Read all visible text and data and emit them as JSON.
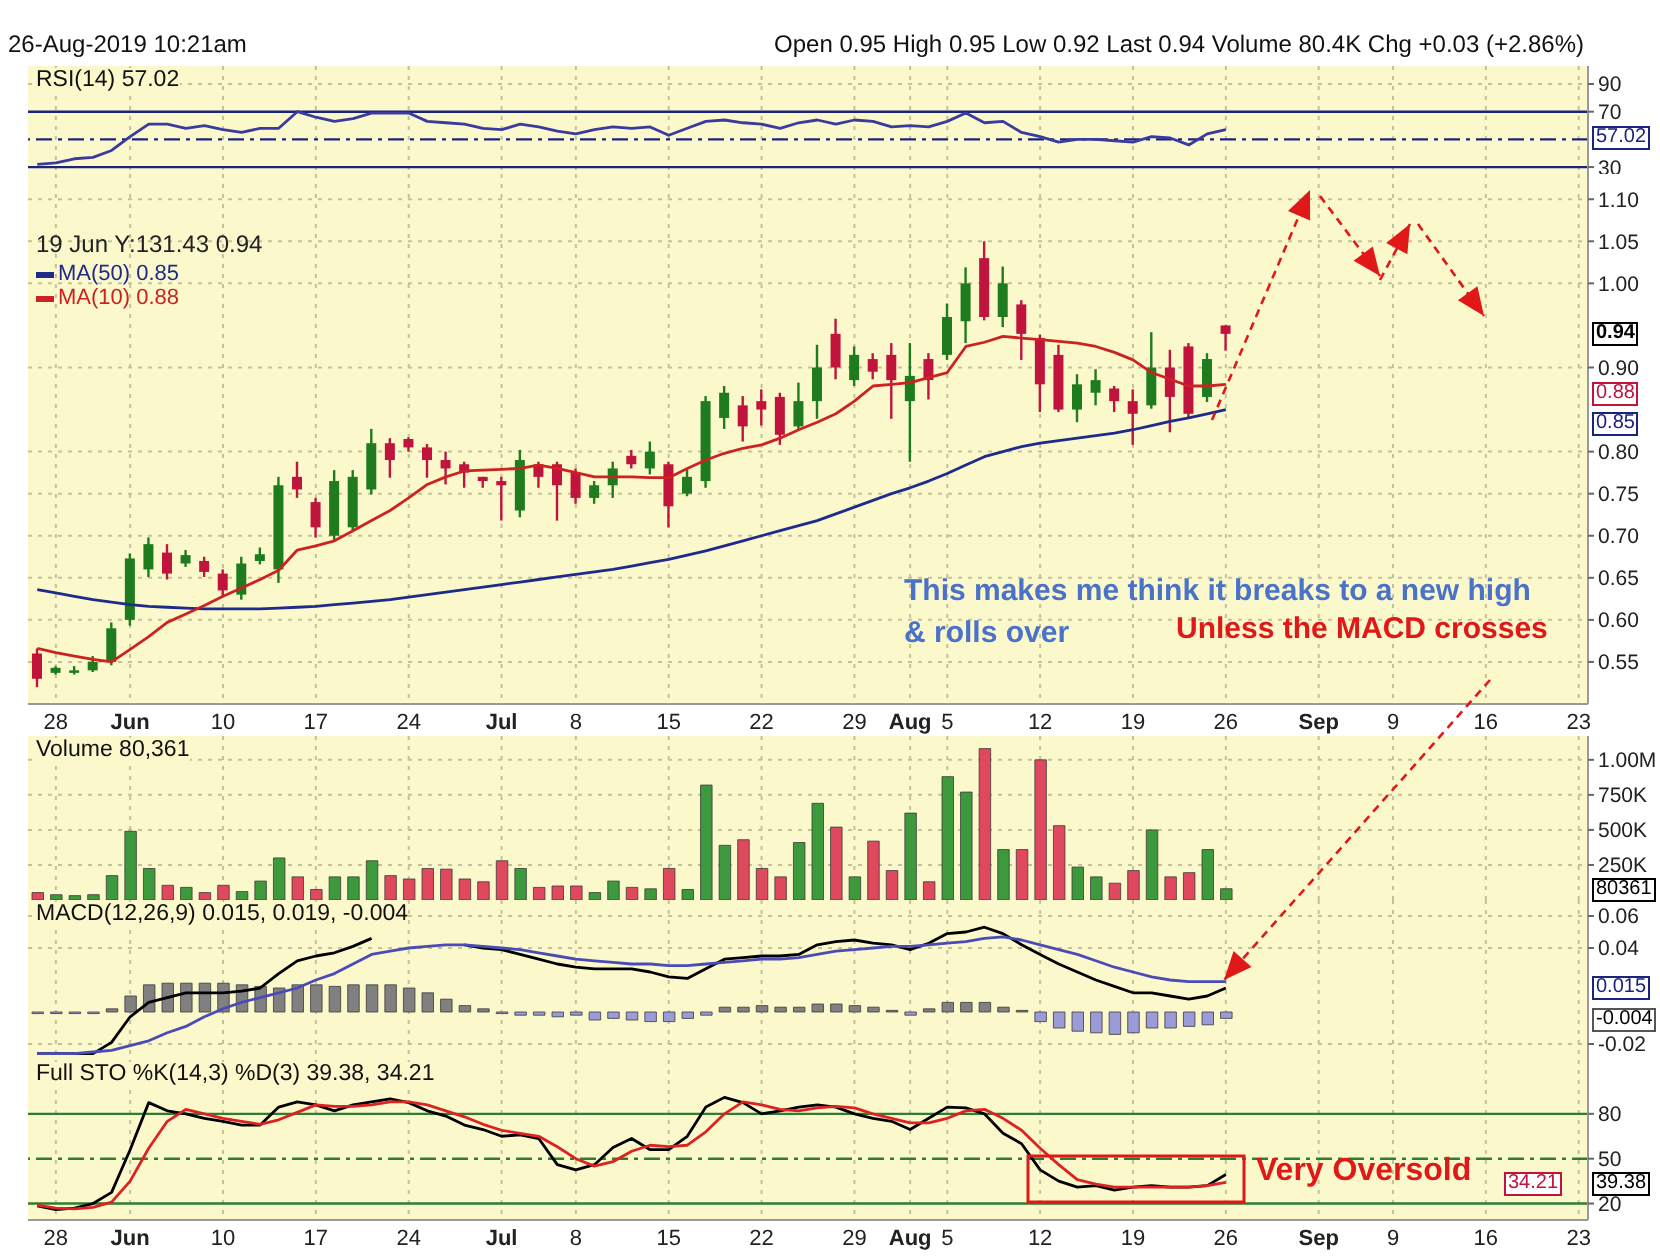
{
  "chart_data": [
    {
      "type": "other",
      "title": "26-Aug-2019 10:21am",
      "subtitle": "Open 0.95 High 0.95 Low 0.92 Last 0.94 Volume 80.4K Chg +0.03 (+2.86%)"
    },
    {
      "type": "line",
      "title": "RSI(14) 57.02",
      "categories": [
        null,
        null,
        null,
        null,
        null,
        null,
        null,
        null,
        null,
        null,
        null,
        null,
        null,
        null,
        null,
        null,
        null,
        null,
        null,
        null,
        null,
        null,
        null,
        null,
        null,
        null,
        null,
        null,
        null,
        null,
        null,
        null,
        null,
        null,
        null,
        null,
        null,
        null,
        null,
        null,
        null,
        null,
        null,
        null,
        null,
        null,
        null,
        null,
        null,
        null,
        null,
        null,
        null,
        null,
        null,
        null,
        null,
        null,
        null,
        null,
        null,
        null,
        null,
        null,
        null,
        null,
        null,
        null,
        null,
        null,
        null,
        null,
        null,
        null,
        null,
        null,
        null,
        null,
        null,
        null,
        null,
        null,
        null,
        null
      ],
      "series": [
        {
          "color": "#3a3aa0",
          "values": [
            32,
            33,
            36,
            37,
            42,
            52,
            61,
            61,
            58,
            60,
            57,
            55,
            58,
            58,
            70,
            66,
            63,
            65,
            69,
            69,
            69,
            63,
            62,
            61,
            58,
            57,
            61,
            59,
            56,
            54,
            57,
            59,
            58,
            59,
            53,
            58,
            63,
            64,
            62,
            61,
            58,
            62,
            64,
            61,
            64,
            63,
            59,
            60,
            59,
            63,
            69,
            62,
            63,
            55,
            52,
            48,
            50,
            50,
            49,
            48,
            52,
            51,
            46,
            54,
            57.02,
            null,
            null,
            null,
            null,
            null,
            null,
            null,
            null,
            null,
            null,
            null,
            null,
            null,
            null,
            null,
            null,
            null,
            null,
            null
          ]
        }
      ],
      "ylim": [
        25,
        103
      ],
      "yticks": [
        30,
        70,
        90
      ],
      "grid": true,
      "tick_labels": "y",
      "ref_lines": [
        {
          "axis": "y",
          "value": 70,
          "color": "#1a237e"
        },
        {
          "axis": "y",
          "value": 50,
          "color": "#1a237e",
          "line_style": "dashed"
        },
        {
          "axis": "y",
          "value": 30,
          "color": "#1a237e"
        }
      ],
      "annotations": [
        "57.02"
      ]
    },
    {
      "type": "candlestick",
      "categories": [
        null,
        "28",
        null,
        null,
        null,
        "Jun",
        null,
        null,
        null,
        null,
        "10",
        null,
        null,
        null,
        null,
        "17",
        null,
        null,
        null,
        null,
        "24",
        null,
        null,
        null,
        null,
        "Jul",
        null,
        null,
        null,
        "8",
        null,
        null,
        null,
        null,
        "15",
        null,
        null,
        null,
        null,
        "22",
        null,
        null,
        null,
        null,
        "29",
        null,
        null,
        "Aug",
        null,
        "5",
        null,
        null,
        null,
        null,
        "12",
        null,
        null,
        null,
        null,
        "19",
        null,
        null,
        null,
        null,
        "26",
        null,
        null,
        null,
        null,
        "Sep",
        null,
        null,
        null,
        "9",
        null,
        null,
        null,
        null,
        "16",
        null,
        null,
        null,
        null,
        "23"
      ],
      "ohlc": [
        [
          0.56,
          0.566,
          0.52,
          0.53
        ],
        [
          0.537,
          0.545,
          0.535,
          0.543
        ],
        [
          0.537,
          0.545,
          0.535,
          0.54
        ],
        [
          0.54,
          0.557,
          0.538,
          0.55
        ],
        [
          0.55,
          0.597,
          0.546,
          0.59
        ],
        [
          0.6,
          0.679,
          0.593,
          0.673
        ],
        [
          0.66,
          0.698,
          0.651,
          0.69
        ],
        [
          0.68,
          0.69,
          0.648,
          0.655
        ],
        [
          0.667,
          0.683,
          0.663,
          0.677
        ],
        [
          0.67,
          0.675,
          0.651,
          0.657
        ],
        [
          0.655,
          0.66,
          0.628,
          0.635
        ],
        [
          0.63,
          0.675,
          0.624,
          0.667
        ],
        [
          0.67,
          0.686,
          0.666,
          0.678
        ],
        [
          0.66,
          0.77,
          0.644,
          0.76
        ],
        [
          0.77,
          0.788,
          0.745,
          0.755
        ],
        [
          0.74,
          0.745,
          0.698,
          0.71
        ],
        [
          0.7,
          0.778,
          0.695,
          0.765
        ],
        [
          0.71,
          0.778,
          0.706,
          0.77
        ],
        [
          0.755,
          0.827,
          0.749,
          0.81
        ],
        [
          0.81,
          0.816,
          0.769,
          0.79
        ],
        [
          0.815,
          0.817,
          0.8,
          0.805
        ],
        [
          0.805,
          0.809,
          0.769,
          0.79
        ],
        [
          0.79,
          0.8,
          0.761,
          0.78
        ],
        [
          0.785,
          0.788,
          0.757,
          0.775
        ],
        [
          0.77,
          0.77,
          0.757,
          0.765
        ],
        [
          0.765,
          0.77,
          0.718,
          0.76
        ],
        [
          0.73,
          0.802,
          0.722,
          0.79
        ],
        [
          0.785,
          0.788,
          0.757,
          0.77
        ],
        [
          0.785,
          0.788,
          0.718,
          0.76
        ],
        [
          0.775,
          0.78,
          0.738,
          0.745
        ],
        [
          0.745,
          0.765,
          0.738,
          0.76
        ],
        [
          0.76,
          0.788,
          0.745,
          0.78
        ],
        [
          0.795,
          0.802,
          0.78,
          0.785
        ],
        [
          0.78,
          0.812,
          0.773,
          0.8
        ],
        [
          0.785,
          0.788,
          0.71,
          0.735
        ],
        [
          0.75,
          0.78,
          0.747,
          0.77
        ],
        [
          0.765,
          0.866,
          0.757,
          0.86
        ],
        [
          0.84,
          0.878,
          0.827,
          0.87
        ],
        [
          0.855,
          0.866,
          0.812,
          0.83
        ],
        [
          0.86,
          0.874,
          0.831,
          0.85
        ],
        [
          0.865,
          0.87,
          0.808,
          0.82
        ],
        [
          0.83,
          0.882,
          0.827,
          0.86
        ],
        [
          0.86,
          0.927,
          0.839,
          0.9
        ],
        [
          0.94,
          0.958,
          0.886,
          0.9
        ],
        [
          0.885,
          0.925,
          0.878,
          0.915
        ],
        [
          0.91,
          0.917,
          0.886,
          0.895
        ],
        [
          0.915,
          0.929,
          0.839,
          0.885
        ],
        [
          0.86,
          0.929,
          0.788,
          0.89
        ],
        [
          0.91,
          0.917,
          0.862,
          0.885
        ],
        [
          0.915,
          0.976,
          0.909,
          0.96
        ],
        [
          0.955,
          1.019,
          0.929,
          1.0
        ],
        [
          1.03,
          1.05,
          0.956,
          0.96
        ],
        [
          0.96,
          1.02,
          0.948,
          1.0
        ],
        [
          0.975,
          0.98,
          0.909,
          0.94
        ],
        [
          0.935,
          0.939,
          0.847,
          0.88
        ],
        [
          0.915,
          0.927,
          0.847,
          0.85
        ],
        [
          0.85,
          0.892,
          0.835,
          0.88
        ],
        [
          0.87,
          0.898,
          0.855,
          0.885
        ],
        [
          0.875,
          0.878,
          0.847,
          0.86
        ],
        [
          0.86,
          0.874,
          0.808,
          0.845
        ],
        [
          0.855,
          0.942,
          0.851,
          0.9
        ],
        [
          0.9,
          0.921,
          0.823,
          0.865
        ],
        [
          0.925,
          0.929,
          0.839,
          0.845
        ],
        [
          0.865,
          0.917,
          0.859,
          0.91
        ],
        [
          0.95,
          0.95,
          0.92,
          0.94
        ],
        null,
        null,
        null,
        null,
        null,
        null,
        null,
        null,
        null,
        null,
        null,
        null,
        null,
        null,
        null,
        null,
        null,
        null,
        null
      ],
      "colors": [
        "#c0143c",
        "#1e7b1e",
        "#1e7b1e",
        "#1e7b1e",
        "#1e7b1e",
        "#1e7b1e",
        "#1e7b1e",
        "#c0143c",
        "#1e7b1e",
        "#c0143c",
        "#c0143c",
        "#1e7b1e",
        "#1e7b1e",
        "#1e7b1e",
        "#c0143c",
        "#c0143c",
        "#1e7b1e",
        "#1e7b1e",
        "#1e7b1e",
        "#c0143c",
        "#c0143c",
        "#c0143c",
        "#c0143c",
        "#c0143c",
        "#c0143c",
        "#c0143c",
        "#1e7b1e",
        "#c0143c",
        "#c0143c",
        "#c0143c",
        "#1e7b1e",
        "#1e7b1e",
        "#c0143c",
        "#1e7b1e",
        "#c0143c",
        "#1e7b1e",
        "#1e7b1e",
        "#1e7b1e",
        "#c0143c",
        "#c0143c",
        "#c0143c",
        "#1e7b1e",
        "#1e7b1e",
        "#c0143c",
        "#1e7b1e",
        "#c0143c",
        "#c0143c",
        "#1e7b1e",
        "#c0143c",
        "#1e7b1e",
        "#1e7b1e",
        "#c0143c",
        "#1e7b1e",
        "#c0143c",
        "#c0143c",
        "#c0143c",
        "#1e7b1e",
        "#1e7b1e",
        "#c0143c",
        "#c0143c",
        "#1e7b1e",
        "#c0143c",
        "#c0143c",
        "#1e7b1e",
        "#c0143c",
        null,
        null,
        null,
        null,
        null,
        null,
        null,
        null,
        null,
        null,
        null,
        null,
        null,
        null,
        null,
        null,
        null,
        null,
        null
      ],
      "series": [
        {
          "type": "line",
          "name": "MA(50) 0.85",
          "color": "#1f2a8a",
          "values": [
            0.636,
            0.632,
            0.628,
            0.624,
            0.621,
            0.618,
            0.616,
            0.615,
            0.614,
            0.613,
            0.613,
            0.613,
            0.613,
            0.614,
            0.615,
            0.616,
            0.618,
            0.62,
            0.622,
            0.624,
            0.627,
            0.63,
            0.633,
            0.636,
            0.639,
            0.642,
            0.645,
            0.648,
            0.651,
            0.654,
            0.657,
            0.66,
            0.664,
            0.668,
            0.672,
            0.677,
            0.682,
            0.688,
            0.694,
            0.7,
            0.706,
            0.712,
            0.718,
            0.726,
            0.734,
            0.742,
            0.75,
            0.757,
            0.765,
            0.774,
            0.784,
            0.794,
            0.8,
            0.806,
            0.81,
            0.813,
            0.816,
            0.819,
            0.822,
            0.826,
            0.831,
            0.836,
            0.84,
            0.845,
            0.85,
            null,
            null,
            null,
            null,
            null,
            null,
            null,
            null,
            null,
            null,
            null,
            null,
            null,
            null,
            null,
            null,
            null,
            null,
            null
          ]
        },
        {
          "type": "line",
          "name": "MA(10) 0.88",
          "color": "#cc2222",
          "values": [
            0.566,
            0.561,
            0.557,
            0.553,
            0.55,
            0.565,
            0.58,
            0.597,
            0.607,
            0.617,
            0.628,
            0.638,
            0.648,
            0.659,
            0.683,
            0.688,
            0.694,
            0.706,
            0.718,
            0.73,
            0.745,
            0.761,
            0.77,
            0.777,
            0.778,
            0.779,
            0.78,
            0.784,
            0.78,
            0.775,
            0.77,
            0.77,
            0.77,
            0.769,
            0.769,
            0.78,
            0.79,
            0.798,
            0.804,
            0.808,
            0.816,
            0.826,
            0.835,
            0.845,
            0.86,
            0.878,
            0.88,
            0.882,
            0.888,
            0.894,
            0.925,
            0.93,
            0.937,
            0.935,
            0.933,
            0.931,
            0.929,
            0.925,
            0.918,
            0.909,
            0.894,
            0.886,
            0.878,
            0.878,
            0.88,
            null,
            null,
            null,
            null,
            null,
            null,
            null,
            null,
            null,
            null,
            null,
            null,
            null,
            null,
            null,
            null,
            null,
            null,
            null
          ]
        }
      ],
      "ylim": [
        0.5,
        1.13
      ],
      "yticks": [
        {
          "value": 0.55,
          "label": "0.55"
        },
        {
          "value": 0.6,
          "label": "0.60"
        },
        {
          "value": 0.65,
          "label": "0.65"
        },
        {
          "value": 0.7,
          "label": "0.70"
        },
        {
          "value": 0.75,
          "label": "0.75"
        },
        {
          "value": 0.8,
          "label": "0.80"
        },
        {
          "value": 0.9,
          "label": "0.90"
        },
        {
          "value": 1,
          "label": "1.00"
        },
        {
          "value": 1.05,
          "label": "1.05"
        },
        {
          "value": 1.1,
          "label": "1.10"
        }
      ],
      "grid": true,
      "legend": "top left",
      "annotations": [
        "19 Jun Y:131.43 0.94",
        "This makes me think it breaks to a new high & rolls over",
        "Unless the MACD crosses",
        "0.94",
        "0.88",
        "0.85"
      ]
    },
    {
      "type": "bar",
      "title": "Volume 80,361",
      "categories": [
        null,
        null,
        null,
        null,
        null,
        null,
        null,
        null,
        null,
        null,
        null,
        null,
        null,
        null,
        null,
        null,
        null,
        null,
        null,
        null,
        null,
        null,
        null,
        null,
        null,
        null,
        null,
        null,
        null,
        null,
        null,
        null,
        null,
        null,
        null,
        null,
        null,
        null,
        null,
        null,
        null,
        null,
        null,
        null,
        null,
        null,
        null,
        null,
        null,
        null,
        null,
        null,
        null,
        null,
        null,
        null,
        null,
        null,
        null,
        null,
        null,
        null,
        null,
        null,
        null,
        null,
        null,
        null,
        null,
        null,
        null,
        null,
        null,
        null,
        null,
        null,
        null,
        null,
        null,
        null,
        null,
        null,
        null,
        null
      ],
      "values": [
        53000,
        38000,
        31000,
        38000,
        174000,
        490000,
        225000,
        105000,
        90000,
        53000,
        105000,
        60000,
        135000,
        300000,
        165000,
        75000,
        165000,
        165000,
        280000,
        174000,
        150000,
        225000,
        220000,
        150000,
        130000,
        280000,
        225000,
        90000,
        100000,
        100000,
        53000,
        135000,
        90000,
        80000,
        225000,
        75000,
        820000,
        390000,
        430000,
        225000,
        165000,
        410000,
        690000,
        520000,
        165000,
        420000,
        210000,
        620000,
        130000,
        880000,
        770000,
        1080000,
        360000,
        360000,
        1000000,
        530000,
        235000,
        165000,
        120000,
        210000,
        500000,
        165000,
        195000,
        360000,
        80361,
        null,
        null,
        null,
        null,
        null,
        null,
        null,
        null,
        null,
        null,
        null,
        null,
        null,
        null,
        null,
        null,
        null,
        null,
        null
      ],
      "colors": [
        "#e0485e",
        "#3c9a3c",
        "#3c9a3c",
        "#3c9a3c",
        "#3c9a3c",
        "#3c9a3c",
        "#3c9a3c",
        "#e0485e",
        "#3c9a3c",
        "#e0485e",
        "#e0485e",
        "#3c9a3c",
        "#3c9a3c",
        "#3c9a3c",
        "#e0485e",
        "#e0485e",
        "#3c9a3c",
        "#3c9a3c",
        "#3c9a3c",
        "#e0485e",
        "#e0485e",
        "#e0485e",
        "#e0485e",
        "#e0485e",
        "#e0485e",
        "#e0485e",
        "#3c9a3c",
        "#e0485e",
        "#e0485e",
        "#e0485e",
        "#3c9a3c",
        "#3c9a3c",
        "#e0485e",
        "#3c9a3c",
        "#e0485e",
        "#3c9a3c",
        "#3c9a3c",
        "#3c9a3c",
        "#e0485e",
        "#e0485e",
        "#e0485e",
        "#3c9a3c",
        "#3c9a3c",
        "#e0485e",
        "#3c9a3c",
        "#e0485e",
        "#e0485e",
        "#3c9a3c",
        "#e0485e",
        "#3c9a3c",
        "#3c9a3c",
        "#e0485e",
        "#3c9a3c",
        "#e0485e",
        "#e0485e",
        "#e0485e",
        "#3c9a3c",
        "#3c9a3c",
        "#e0485e",
        "#e0485e",
        "#3c9a3c",
        "#e0485e",
        "#e0485e",
        "#3c9a3c",
        "#3c9a3c",
        null,
        null,
        null,
        null,
        null,
        null,
        null,
        null,
        null,
        null,
        null,
        null,
        null,
        null,
        null,
        null,
        null,
        null,
        null
      ],
      "ylim": [
        0,
        1170000
      ],
      "yticks": [
        {
          "value": 250000,
          "label": "250K"
        },
        {
          "value": 500000,
          "label": "500K"
        },
        {
          "value": 750000,
          "label": "750K"
        },
        {
          "value": 1000000,
          "label": "1.00M"
        }
      ],
      "grid": true,
      "tick_labels": "y",
      "annotations": [
        "80361"
      ]
    },
    {
      "type": "line",
      "title": "MACD(12,26,9) 0.015, 0.019, -0.004",
      "categories": [
        null,
        null,
        null,
        null,
        null,
        null,
        null,
        null,
        null,
        null,
        null,
        null,
        null,
        null,
        null,
        null,
        null,
        null,
        null,
        null,
        null,
        null,
        null,
        null,
        null,
        null,
        null,
        null,
        null,
        null,
        null,
        null,
        null,
        null,
        null,
        null,
        null,
        null,
        null,
        null,
        null,
        null,
        null,
        null,
        null,
        null,
        null,
        null,
        null,
        null,
        null,
        null,
        null,
        null,
        null,
        null,
        null,
        null,
        null,
        null,
        null,
        null,
        null,
        null,
        null,
        null,
        null,
        null,
        null,
        null,
        null,
        null,
        null,
        null,
        null,
        null,
        null,
        null,
        null,
        null,
        null,
        null,
        null,
        null
      ],
      "series": [
        {
          "type": "bar",
          "values": [
            -0.001,
            -0.001,
            -0.001,
            -0.001,
            0.002,
            0.01,
            0.017,
            0.018,
            0.018,
            0.018,
            0.018,
            0.017,
            0.016,
            0.015,
            0.017,
            0.017,
            0.016,
            0.017,
            0.017,
            0.017,
            0.015,
            0.012,
            0.008,
            0.004,
            0.002,
            -0.001,
            -0.002,
            -0.002,
            -0.003,
            -0.002,
            -0.005,
            -0.004,
            -0.005,
            -0.006,
            -0.006,
            -0.004,
            -0.002,
            0.003,
            0.003,
            0.004,
            0.003,
            0.003,
            0.005,
            0.005,
            0.004,
            0.003,
            0.001,
            -0.002,
            0.002,
            0.006,
            0.006,
            0.006,
            0.003,
            0.001,
            -0.006,
            -0.01,
            -0.012,
            -0.013,
            -0.014,
            -0.013,
            -0.01,
            -0.01,
            -0.009,
            -0.008,
            -0.004,
            null,
            null,
            null,
            null,
            null,
            null,
            null,
            null,
            null,
            null,
            null,
            null,
            null,
            null,
            null,
            null,
            null,
            null,
            null
          ],
          "colors": [
            "#9b9bd8",
            "#9b9bd8",
            "#9b9bd8",
            "#9b9bd8",
            "#808080",
            "#808080",
            "#808080",
            "#808080",
            "#808080",
            "#808080",
            "#808080",
            "#808080",
            "#808080",
            "#808080",
            "#808080",
            "#808080",
            "#808080",
            "#808080",
            "#808080",
            "#808080",
            "#808080",
            "#808080",
            "#808080",
            "#808080",
            "#808080",
            "#9b9bd8",
            "#9b9bd8",
            "#9b9bd8",
            "#9b9bd8",
            "#9b9bd8",
            "#9b9bd8",
            "#9b9bd8",
            "#9b9bd8",
            "#9b9bd8",
            "#9b9bd8",
            "#9b9bd8",
            "#9b9bd8",
            "#808080",
            "#808080",
            "#808080",
            "#808080",
            "#808080",
            "#808080",
            "#808080",
            "#808080",
            "#808080",
            "#808080",
            "#9b9bd8",
            "#808080",
            "#808080",
            "#808080",
            "#808080",
            "#808080",
            "#808080",
            "#9b9bd8",
            "#9b9bd8",
            "#9b9bd8",
            "#9b9bd8",
            "#9b9bd8",
            "#9b9bd8",
            "#9b9bd8",
            "#9b9bd8",
            "#9b9bd8",
            "#9b9bd8",
            "#9b9bd8",
            null,
            null,
            null,
            null,
            null,
            null,
            null,
            null,
            null,
            null,
            null,
            null,
            null,
            null,
            null,
            null,
            null,
            null,
            null
          ]
        },
        {
          "color": "#000000",
          "values": [
            -0.026,
            -0.026,
            -0.026,
            -0.026,
            -0.019,
            -0.003,
            0.006,
            0.009,
            0.012,
            0.012,
            0.012,
            0.013,
            0.015,
            0.024,
            0.032,
            0.035,
            0.037,
            0.041,
            0.046,
            null,
            null,
            null,
            null,
            0.042,
            0.04,
            0.039,
            0.036,
            0.033,
            0.03,
            0.028,
            0.027,
            0.027,
            0.027,
            0.025,
            0.022,
            0.021,
            0.027,
            0.033,
            0.034,
            0.035,
            0.035,
            0.036,
            0.042,
            0.044,
            0.045,
            0.043,
            0.042,
            0.039,
            0.043,
            0.049,
            0.05,
            0.053,
            0.049,
            0.042,
            0.036,
            0.03,
            0.025,
            0.02,
            0.016,
            0.012,
            0.012,
            0.01,
            0.008,
            0.01,
            0.015,
            null,
            null,
            null,
            null,
            null,
            null,
            null,
            null,
            null,
            null,
            null,
            null,
            null,
            null,
            null,
            null,
            null,
            null,
            null
          ]
        },
        {
          "color": "#4b4bb8",
          "values": [
            -0.026,
            -0.026,
            -0.026,
            -0.025,
            -0.024,
            -0.021,
            -0.018,
            -0.013,
            -0.009,
            -0.003,
            0.002,
            0.006,
            0.009,
            0.012,
            0.015,
            0.02,
            0.024,
            0.03,
            0.036,
            0.038,
            0.04,
            0.041,
            0.042,
            0.042,
            0.041,
            0.04,
            0.039,
            0.037,
            0.035,
            0.033,
            0.032,
            0.031,
            0.03,
            0.03,
            0.029,
            0.029,
            0.03,
            0.031,
            0.032,
            0.033,
            0.033,
            0.034,
            0.036,
            0.038,
            0.039,
            0.04,
            0.041,
            0.041,
            0.042,
            0.043,
            0.044,
            0.046,
            0.047,
            0.045,
            0.042,
            0.039,
            0.036,
            0.032,
            0.028,
            0.025,
            0.022,
            0.02,
            0.019,
            0.019,
            0.019,
            null,
            null,
            null,
            null,
            null,
            null,
            null,
            null,
            null,
            null,
            null,
            null,
            null,
            null,
            null,
            null,
            null,
            null,
            null
          ]
        }
      ],
      "ylim": [
        -0.03,
        0.07
      ],
      "yticks": [
        {
          "value": 0.06,
          "label": "0.06"
        },
        {
          "value": 0.04,
          "label": "0.04"
        },
        {
          "value": -0.02,
          "label": "-0.02"
        }
      ],
      "grid": true,
      "tick_labels": "y",
      "annotations": [
        "0.015",
        "-0.004"
      ]
    },
    {
      "type": "line",
      "title": "Full STO %K(14,3) %D(3) 39.38, 34.21",
      "categories": [
        null,
        "28",
        null,
        null,
        null,
        "Jun",
        null,
        null,
        null,
        null,
        "10",
        null,
        null,
        null,
        null,
        "17",
        null,
        null,
        null,
        null,
        "24",
        null,
        null,
        null,
        null,
        "Jul",
        null,
        null,
        null,
        "8",
        null,
        null,
        null,
        null,
        "15",
        null,
        null,
        null,
        null,
        "22",
        null,
        null,
        null,
        null,
        "29",
        null,
        null,
        "Aug",
        null,
        "5",
        null,
        null,
        null,
        null,
        "12",
        null,
        null,
        null,
        null,
        "19",
        null,
        null,
        null,
        null,
        "26",
        null,
        null,
        null,
        null,
        "Sep",
        null,
        null,
        null,
        "9",
        null,
        null,
        null,
        null,
        "16",
        null,
        null,
        null,
        null,
        "23"
      ],
      "series": [
        {
          "color": "#000000",
          "values": [
            18.5,
            16,
            17,
            20,
            27.5,
            56,
            87.5,
            82,
            80,
            77,
            75,
            72.5,
            72.5,
            84.5,
            88,
            86,
            82,
            86,
            88,
            90,
            87.5,
            82,
            78.5,
            72.5,
            69.5,
            65,
            66,
            63.5,
            46,
            42.5,
            46,
            57.5,
            63.5,
            56,
            56,
            65,
            84.5,
            91,
            87.5,
            80,
            82,
            84.5,
            86,
            84.5,
            80,
            77,
            75,
            69.5,
            77,
            84.5,
            84,
            80,
            67,
            60,
            42.5,
            35,
            31,
            32,
            29,
            31,
            32,
            31,
            31,
            32,
            39.38,
            null,
            null,
            null,
            null,
            null,
            null,
            null,
            null,
            null,
            null,
            null,
            null,
            null,
            null,
            null,
            null,
            null,
            null,
            null
          ]
        },
        {
          "color": "#dd2222",
          "values": [
            19,
            17,
            16.5,
            17.5,
            21,
            35,
            57,
            75,
            83,
            80,
            77,
            75,
            73,
            76,
            81,
            86,
            85,
            85,
            86,
            88,
            88,
            86,
            82,
            78,
            73,
            69,
            67,
            65,
            58,
            50,
            45,
            48,
            55,
            59,
            58,
            59,
            68,
            80,
            88,
            86,
            83,
            82,
            84,
            85,
            84,
            80,
            77,
            74,
            74,
            77,
            82,
            83,
            77,
            69,
            57,
            46,
            36,
            33,
            31,
            31,
            31,
            31,
            31,
            32,
            34.21,
            null,
            null,
            null,
            null,
            null,
            null,
            null,
            null,
            null,
            null,
            null,
            null,
            null,
            null,
            null,
            null,
            null,
            null,
            null
          ]
        }
      ],
      "ylim": [
        9,
        116
      ],
      "yticks": [
        20,
        50,
        80
      ],
      "grid": true,
      "ref_lines": [
        {
          "axis": "y",
          "value": 80,
          "color": "#2e7d32"
        },
        {
          "axis": "y",
          "value": 50,
          "color": "#2e7d32",
          "line_style": "dashed"
        },
        {
          "axis": "y",
          "value": 20,
          "color": "#2e7d32"
        }
      ],
      "annotations": [
        "Very Oversold",
        "39.38",
        "34.21"
      ]
    }
  ]
}
